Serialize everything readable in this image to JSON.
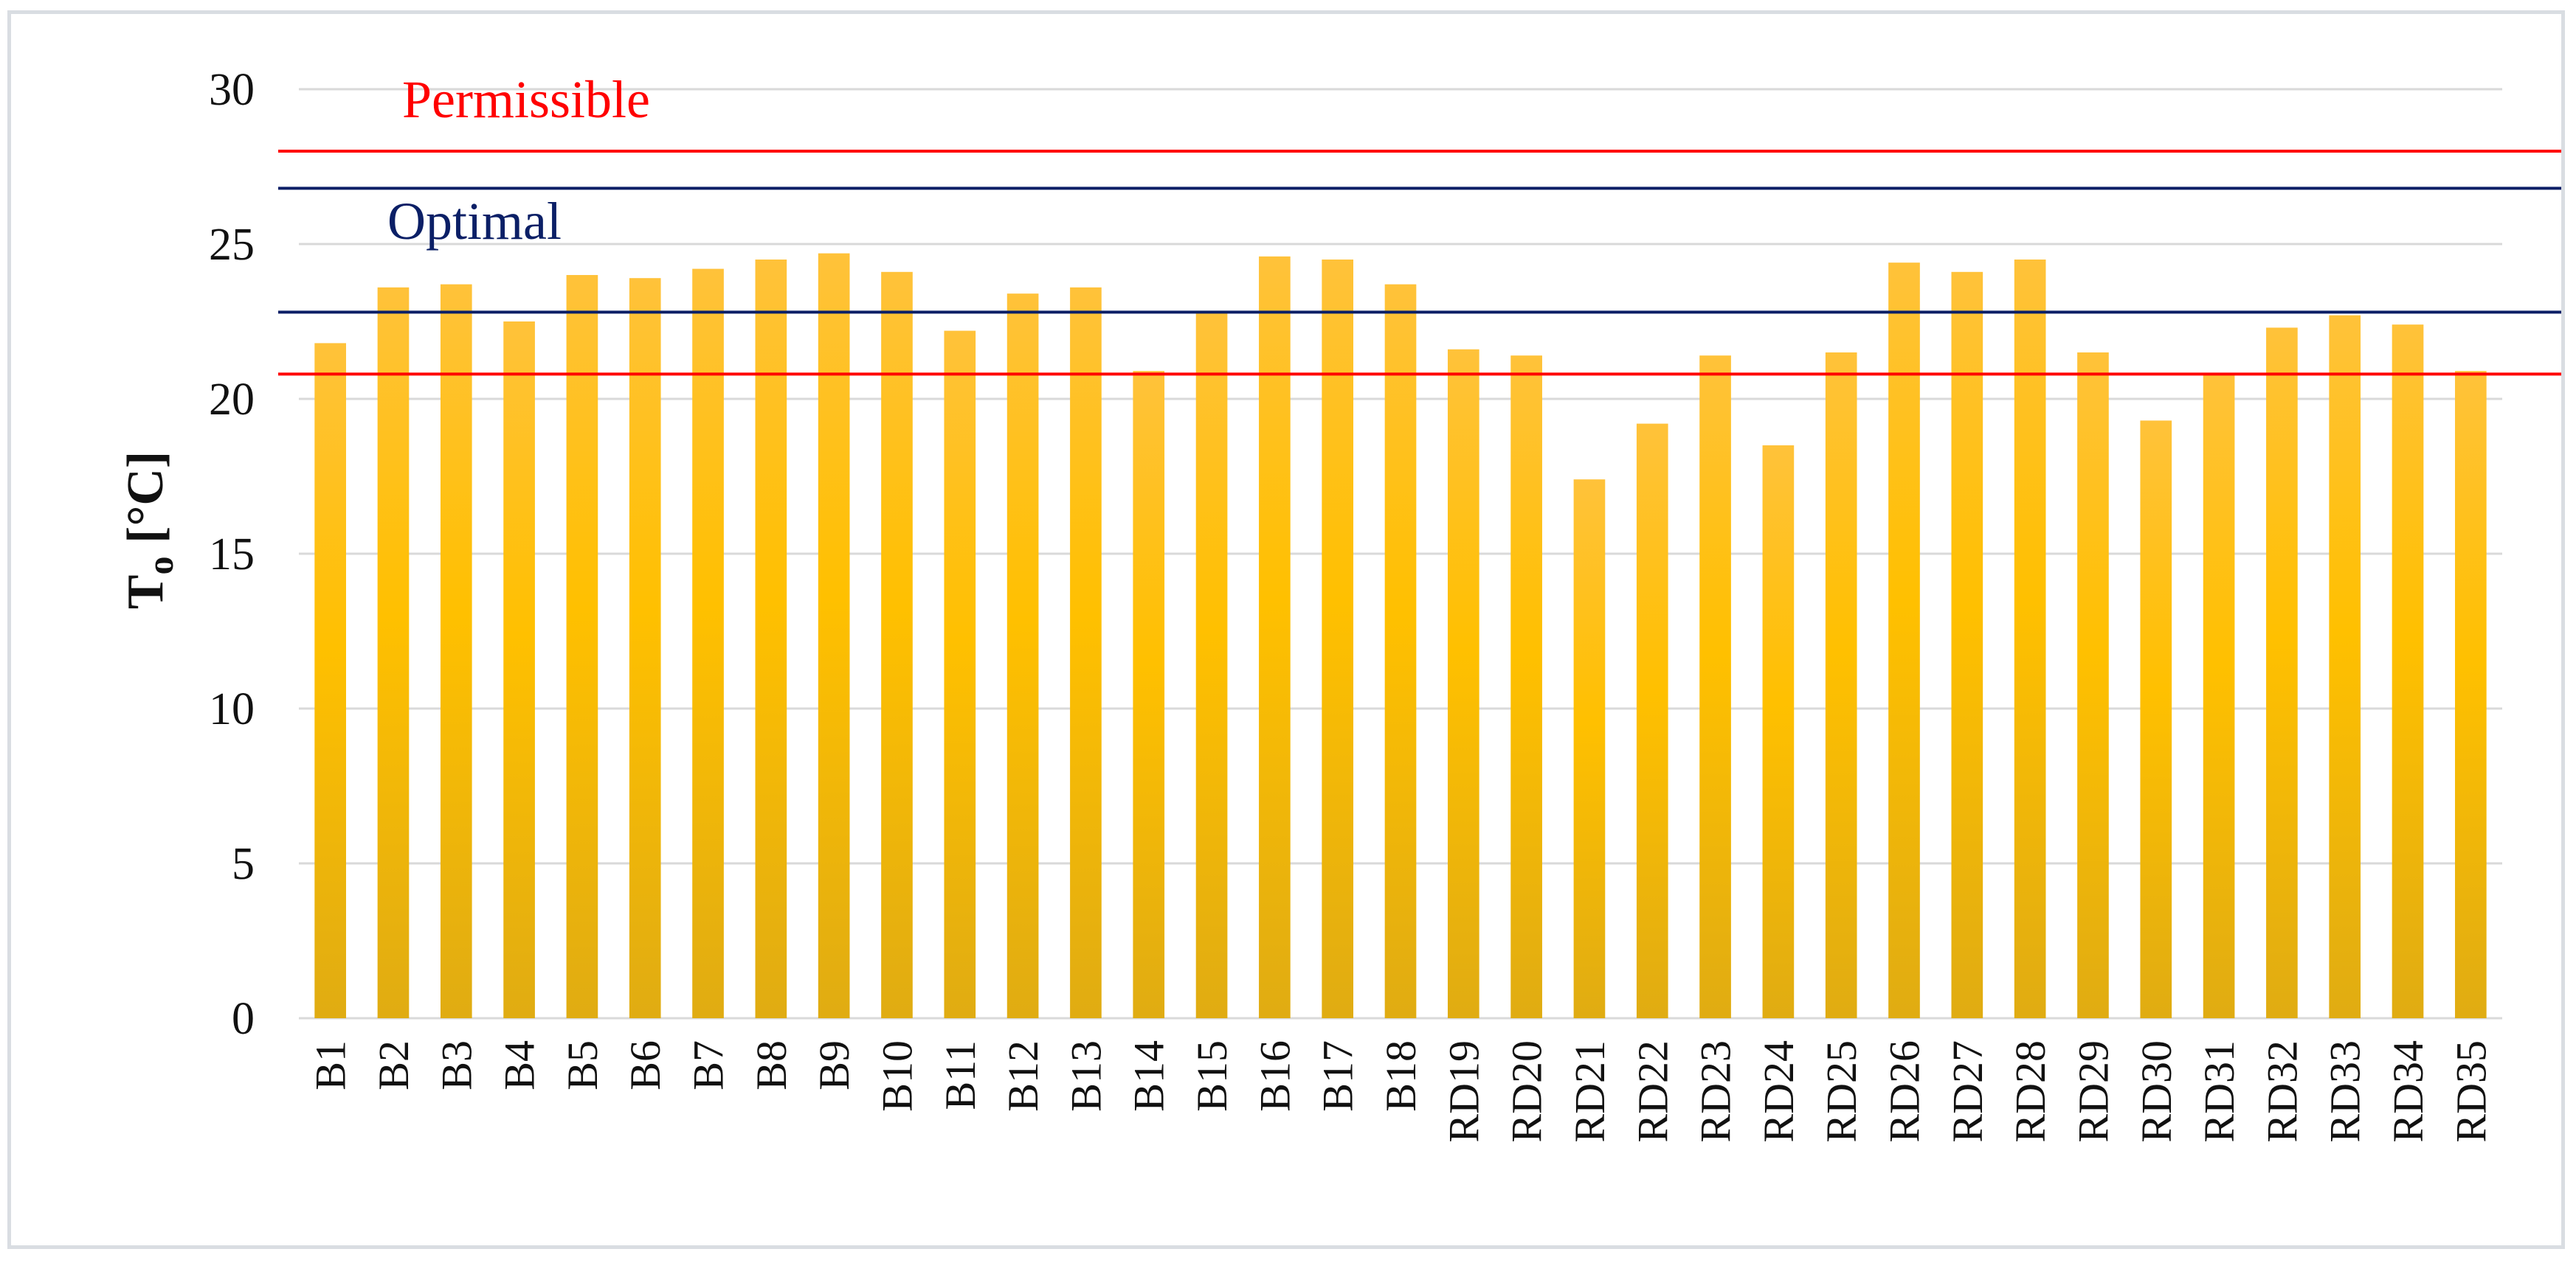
{
  "chart_data": {
    "type": "bar",
    "ylabel_main": "T",
    "ylabel_sub": "o",
    "ylabel_unit": " [°C]",
    "ylim": [
      0,
      30
    ],
    "yticks": [
      "0",
      "5",
      "10",
      "15",
      "20",
      "25",
      "30"
    ],
    "grid": true,
    "bar_color": "#ffc000",
    "categories": [
      "B1",
      "B2",
      "B3",
      "B4",
      "B5",
      "B6",
      "B7",
      "B8",
      "B9",
      "B10",
      "B11",
      "B12",
      "B13",
      "B14",
      "B15",
      "B16",
      "B17",
      "B18",
      "RD19",
      "RD20",
      "RD21",
      "RD22",
      "RD23",
      "RD24",
      "RD25",
      "RD26",
      "RD27",
      "RD28",
      "RD29",
      "RD30",
      "RD31",
      "RD32",
      "RD33",
      "RD34",
      "RD35"
    ],
    "values": [
      21.8,
      23.6,
      23.7,
      22.5,
      24.0,
      23.9,
      24.2,
      24.5,
      24.7,
      24.1,
      22.2,
      23.4,
      23.6,
      20.9,
      22.8,
      24.6,
      24.5,
      23.7,
      21.6,
      21.4,
      17.4,
      19.2,
      21.4,
      18.5,
      21.5,
      24.4,
      24.1,
      24.5,
      21.5,
      19.3,
      20.8,
      22.3,
      22.7,
      22.4,
      20.9
    ],
    "annotations": [
      {
        "label": "Permissible",
        "color": "#ff0000",
        "lines": [
          28.0,
          20.8
        ]
      },
      {
        "label": "Optimal",
        "color": "#0b1f66",
        "lines": [
          26.8,
          22.8
        ]
      }
    ]
  }
}
